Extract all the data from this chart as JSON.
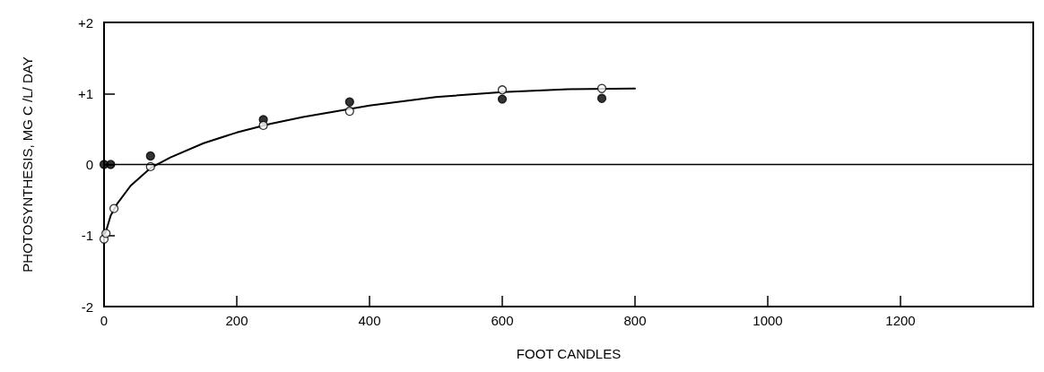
{
  "chart_data": {
    "type": "scatter",
    "xlabel": "FOOT CANDLES",
    "ylabel": "PHOTOSYNTHESIS, MG C /L/ DAY",
    "xlim": [
      0,
      1400
    ],
    "xticks": [
      0,
      200,
      400,
      600,
      800,
      1000,
      1200
    ],
    "ylim": [
      -2,
      2
    ],
    "yticks": [
      {
        "value": -2,
        "label": "-2"
      },
      {
        "value": -1,
        "label": "-1"
      },
      0,
      {
        "value": 1,
        "label": "+1"
      },
      {
        "value": 2,
        "label": "+2"
      }
    ],
    "marker": "circle",
    "grid": false,
    "ref_lines": [
      {
        "axis": "y",
        "value": 0,
        "color": "#000000"
      }
    ],
    "series": [
      {
        "color": "#000000",
        "x": [
          0,
          10,
          70,
          240,
          370,
          600,
          750
        ],
        "values": [
          0,
          0,
          0.12,
          0.63,
          0.88,
          0.92,
          0.93
        ]
      },
      {
        "color": "#ffffff",
        "x": [
          0,
          3,
          15,
          70,
          240,
          370,
          600,
          750
        ],
        "values": [
          -1.05,
          -0.97,
          -0.62,
          -0.03,
          0.55,
          0.75,
          1.05,
          1.07
        ]
      },
      {
        "type": "line",
        "marker": "none",
        "color": "#000000",
        "x": [
          2,
          10,
          20,
          40,
          70,
          100,
          150,
          200,
          250,
          300,
          400,
          500,
          600,
          700,
          800
        ],
        "values": [
          -0.97,
          -0.72,
          -0.55,
          -0.3,
          -0.05,
          0.1,
          0.3,
          0.45,
          0.57,
          0.67,
          0.83,
          0.95,
          1.02,
          1.06,
          1.07
        ]
      }
    ]
  }
}
